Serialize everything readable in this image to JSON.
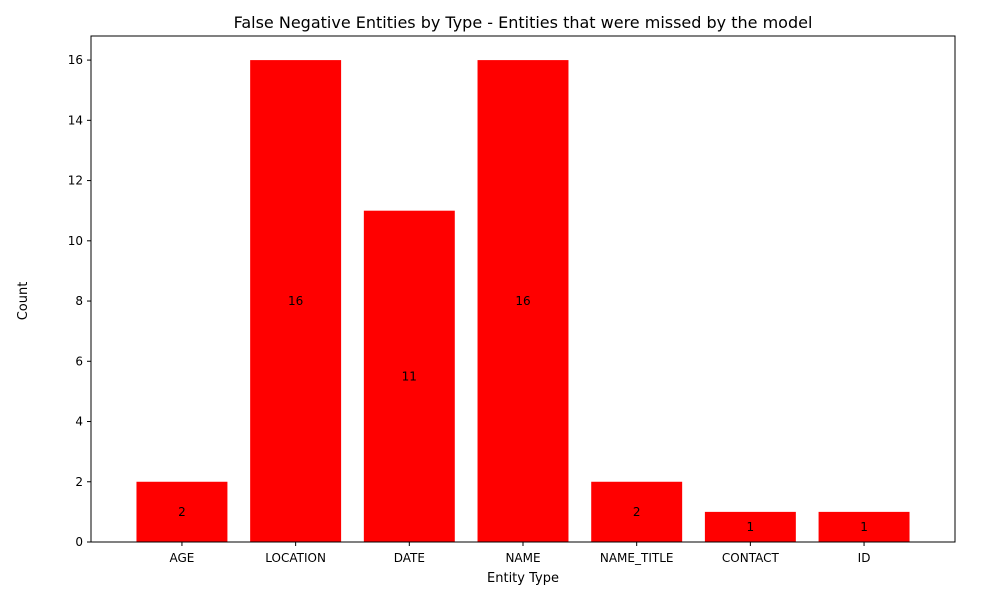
{
  "chart_data": {
    "type": "bar",
    "title": "False Negative Entities by Type - Entities that were missed by the model",
    "xlabel": "Entity Type",
    "ylabel": "Count",
    "categories": [
      "AGE",
      "LOCATION",
      "DATE",
      "NAME",
      "NAME_TITLE",
      "CONTACT",
      "ID"
    ],
    "values": [
      2,
      16,
      11,
      16,
      2,
      1,
      1
    ],
    "data_labels": [
      "2",
      "16",
      "11",
      "16",
      "2",
      "1",
      "1"
    ],
    "ylim": [
      0,
      16.8
    ],
    "yticks": [
      0,
      2,
      4,
      6,
      8,
      10,
      12,
      14,
      16
    ],
    "bar_color": "#ff0000",
    "grid": false,
    "legend": "none"
  }
}
